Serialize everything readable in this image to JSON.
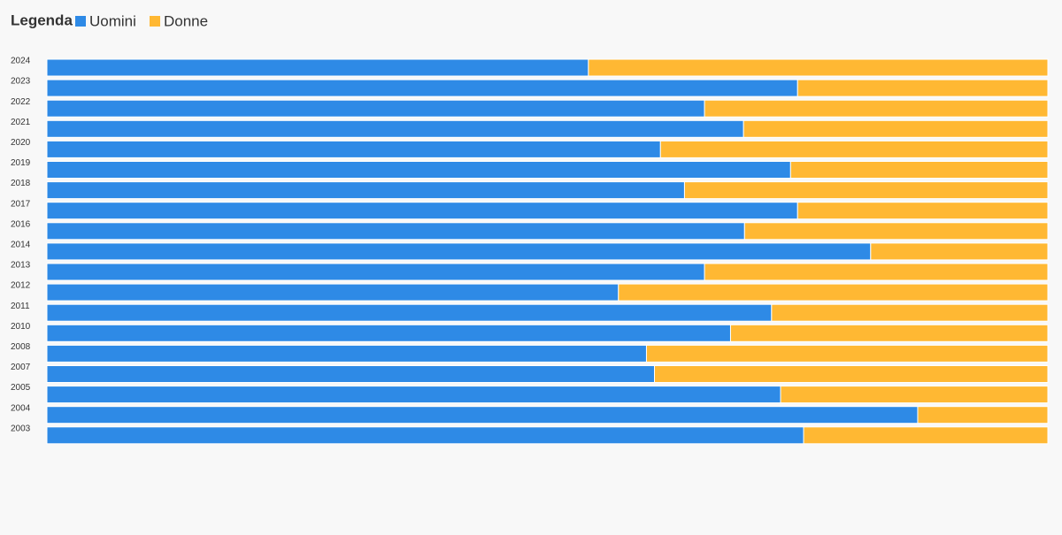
{
  "chart_data": {
    "type": "stacked-bar-horizontal",
    "legend_title": "Legenda",
    "categories": [
      "2024",
      "2023",
      "2022",
      "2021",
      "2020",
      "2019",
      "2018",
      "2017",
      "2016",
      "2014",
      "2013",
      "2012",
      "2011",
      "2010",
      "2008",
      "2007",
      "2005",
      "2004",
      "2003"
    ],
    "xlim": [
      0,
      100
    ],
    "series": [
      {
        "name": "Uomini",
        "color": "#2e8ae6",
        "values": [
          54.1,
          75.0,
          65.7,
          69.6,
          61.3,
          74.3,
          63.7,
          75.0,
          69.7,
          82.3,
          65.7,
          57.1,
          72.4,
          68.3,
          59.9,
          60.7,
          73.3,
          87.0,
          75.6
        ]
      },
      {
        "name": "Donne",
        "color": "#ffb833",
        "values": [
          45.9,
          25.0,
          34.3,
          30.4,
          38.7,
          25.7,
          36.3,
          25.0,
          30.3,
          17.7,
          34.3,
          42.9,
          27.6,
          31.7,
          40.1,
          39.3,
          26.7,
          13.0,
          24.4
        ]
      }
    ]
  }
}
